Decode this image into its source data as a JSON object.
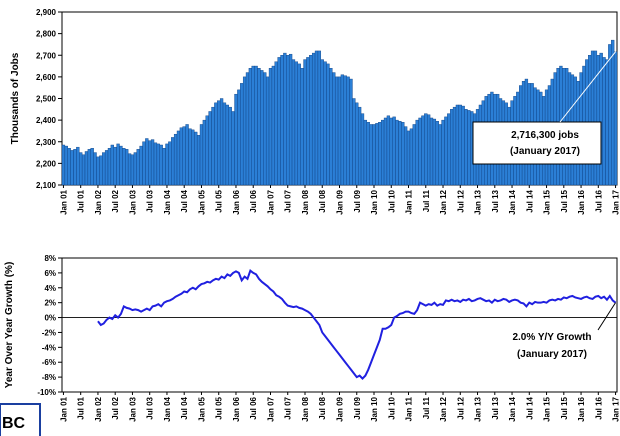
{
  "chart_data": [
    {
      "type": "bar",
      "y_label": "Thousands of Jobs",
      "color": "#2b7fd6",
      "edge_color": "#0d3f80",
      "annotation": [
        "2,716,300 jobs",
        "(January 2017)"
      ],
      "categories": [
        "Jan 01",
        null,
        null,
        null,
        null,
        null,
        "Jul 01",
        null,
        null,
        null,
        null,
        null,
        "Jan 02",
        null,
        null,
        null,
        null,
        null,
        "Jul 02",
        null,
        null,
        null,
        null,
        null,
        "Jan 03",
        null,
        null,
        null,
        null,
        null,
        "Jul 03",
        null,
        null,
        null,
        null,
        null,
        "Jan 04",
        null,
        null,
        null,
        null,
        null,
        "Jul 04",
        null,
        null,
        null,
        null,
        null,
        "Jan 05",
        null,
        null,
        null,
        null,
        null,
        "Jul 05",
        null,
        null,
        null,
        null,
        null,
        "Jan 06",
        null,
        null,
        null,
        null,
        null,
        "Jul 06",
        null,
        null,
        null,
        null,
        null,
        "Jan 07",
        null,
        null,
        null,
        null,
        null,
        "Jul 07",
        null,
        null,
        null,
        null,
        null,
        "Jan 08",
        null,
        null,
        null,
        null,
        null,
        "Jul 08",
        null,
        null,
        null,
        null,
        null,
        "Jan 09",
        null,
        null,
        null,
        null,
        null,
        "Jul 09",
        null,
        null,
        null,
        null,
        null,
        "Jan 10",
        null,
        null,
        null,
        null,
        null,
        "Jul 10",
        null,
        null,
        null,
        null,
        null,
        "Jan 11",
        null,
        null,
        null,
        null,
        null,
        "Jul 11",
        null,
        null,
        null,
        null,
        null,
        "Jan 12",
        null,
        null,
        null,
        null,
        null,
        "Jul 12",
        null,
        null,
        null,
        null,
        null,
        "Jan 13",
        null,
        null,
        null,
        null,
        null,
        "Jul 13",
        null,
        null,
        null,
        null,
        null,
        "Jan 14",
        null,
        null,
        null,
        null,
        null,
        "Jul 14",
        null,
        null,
        null,
        null,
        null,
        "Jan 15",
        null,
        null,
        null,
        null,
        null,
        "Jul 15",
        null,
        null,
        null,
        null,
        null,
        "Jan 16",
        null,
        null,
        null,
        null,
        null,
        "Jul 16",
        null,
        null,
        null,
        null,
        null,
        "Jan 17"
      ],
      "values": [
        2285,
        2280,
        2270,
        2260,
        2265,
        2275,
        2250,
        2240,
        2255,
        2265,
        2270,
        2250,
        2230,
        2235,
        2250,
        2260,
        2270,
        2285,
        2275,
        2290,
        2280,
        2270,
        2265,
        2245,
        2240,
        2250,
        2265,
        2280,
        2300,
        2315,
        2305,
        2310,
        2295,
        2290,
        2285,
        2270,
        2290,
        2300,
        2320,
        2335,
        2350,
        2365,
        2370,
        2380,
        2360,
        2355,
        2345,
        2330,
        2380,
        2400,
        2420,
        2440,
        2460,
        2480,
        2490,
        2500,
        2480,
        2470,
        2460,
        2440,
        2520,
        2540,
        2570,
        2600,
        2620,
        2640,
        2650,
        2650,
        2640,
        2630,
        2620,
        2600,
        2640,
        2650,
        2670,
        2690,
        2700,
        2710,
        2700,
        2705,
        2680,
        2670,
        2660,
        2640,
        2680,
        2690,
        2700,
        2710,
        2720,
        2720,
        2680,
        2670,
        2660,
        2640,
        2620,
        2600,
        2600,
        2610,
        2605,
        2600,
        2590,
        2500,
        2480,
        2460,
        2430,
        2400,
        2390,
        2380,
        2380,
        2385,
        2390,
        2400,
        2410,
        2420,
        2410,
        2415,
        2400,
        2395,
        2390,
        2370,
        2350,
        2360,
        2380,
        2400,
        2410,
        2420,
        2430,
        2425,
        2410,
        2405,
        2395,
        2380,
        2400,
        2415,
        2430,
        2450,
        2460,
        2470,
        2470,
        2465,
        2450,
        2445,
        2440,
        2430,
        2450,
        2470,
        2490,
        2510,
        2520,
        2530,
        2520,
        2520,
        2500,
        2490,
        2480,
        2460,
        2490,
        2510,
        2530,
        2560,
        2580,
        2590,
        2570,
        2570,
        2550,
        2540,
        2530,
        2510,
        2540,
        2560,
        2590,
        2620,
        2640,
        2650,
        2640,
        2640,
        2620,
        2610,
        2600,
        2580,
        2620,
        2650,
        2680,
        2700,
        2720,
        2720,
        2700,
        2710,
        2690,
        2680,
        2750,
        2770,
        2716.3
      ],
      "ylim": [
        2100,
        2900
      ],
      "yticks": [
        {
          "value": 2100,
          "label": "2,100"
        },
        {
          "value": 2200,
          "label": "2,200"
        },
        {
          "value": 2300,
          "label": "2,300"
        },
        {
          "value": 2400,
          "label": "2,400"
        },
        {
          "value": 2500,
          "label": "2,500"
        },
        {
          "value": 2600,
          "label": "2,600"
        },
        {
          "value": 2700,
          "label": "2,700"
        },
        {
          "value": 2800,
          "label": "2,800"
        },
        {
          "value": 2900,
          "label": "2,900"
        }
      ]
    },
    {
      "type": "line",
      "y_label": "Year Over Year Growth (%)",
      "color": "#2020e0",
      "annotation": [
        "2.0% Y/Y Growth",
        "(January 2017)"
      ],
      "categories": [
        "Jan 01",
        null,
        null,
        null,
        null,
        null,
        "Jul 01",
        null,
        null,
        null,
        null,
        null,
        "Jan 02",
        null,
        null,
        null,
        null,
        null,
        "Jul 02",
        null,
        null,
        null,
        null,
        null,
        "Jan 03",
        null,
        null,
        null,
        null,
        null,
        "Jul 03",
        null,
        null,
        null,
        null,
        null,
        "Jan 04",
        null,
        null,
        null,
        null,
        null,
        "Jul 04",
        null,
        null,
        null,
        null,
        null,
        "Jan 05",
        null,
        null,
        null,
        null,
        null,
        "Jul 05",
        null,
        null,
        null,
        null,
        null,
        "Jan 06",
        null,
        null,
        null,
        null,
        null,
        "Jul 06",
        null,
        null,
        null,
        null,
        null,
        "Jan 07",
        null,
        null,
        null,
        null,
        null,
        "Jul 07",
        null,
        null,
        null,
        null,
        null,
        "Jan 08",
        null,
        null,
        null,
        null,
        null,
        "Jul 08",
        null,
        null,
        null,
        null,
        null,
        "Jan 09",
        null,
        null,
        null,
        null,
        null,
        "Jul 09",
        null,
        null,
        null,
        null,
        null,
        "Jan 10",
        null,
        null,
        null,
        null,
        null,
        "Jul 10",
        null,
        null,
        null,
        null,
        null,
        "Jan 11",
        null,
        null,
        null,
        null,
        null,
        "Jul 11",
        null,
        null,
        null,
        null,
        null,
        "Jan 12",
        null,
        null,
        null,
        null,
        null,
        "Jul 12",
        null,
        null,
        null,
        null,
        null,
        "Jan 13",
        null,
        null,
        null,
        null,
        null,
        "Jul 13",
        null,
        null,
        null,
        null,
        null,
        "Jan 14",
        null,
        null,
        null,
        null,
        null,
        "Jul 14",
        null,
        null,
        null,
        null,
        null,
        "Jan 15",
        null,
        null,
        null,
        null,
        null,
        "Jul 15",
        null,
        null,
        null,
        null,
        null,
        "Jan 16",
        null,
        null,
        null,
        null,
        null,
        "Jul 16",
        null,
        null,
        null,
        null,
        null,
        "Jan 17"
      ],
      "values": [
        null,
        null,
        null,
        null,
        null,
        null,
        null,
        null,
        null,
        null,
        null,
        null,
        -0.5,
        -1.0,
        -0.8,
        -0.3,
        0.0,
        -0.2,
        0.3,
        0.0,
        0.5,
        1.5,
        1.3,
        1.2,
        1.0,
        1.1,
        1.0,
        0.8,
        1.0,
        1.2,
        1.0,
        1.5,
        1.6,
        1.8,
        1.5,
        2.0,
        2.2,
        2.3,
        2.5,
        2.8,
        3.0,
        3.2,
        3.5,
        3.4,
        3.8,
        4.0,
        3.8,
        4.2,
        4.5,
        4.6,
        4.8,
        4.7,
        5.0,
        5.2,
        5.1,
        5.5,
        5.3,
        5.8,
        5.6,
        6.0,
        6.2,
        6.0,
        5.0,
        5.5,
        5.2,
        6.3,
        6.0,
        5.8,
        5.2,
        4.8,
        4.5,
        4.2,
        3.8,
        3.5,
        3.0,
        2.8,
        2.5,
        2.0,
        1.6,
        1.5,
        1.4,
        1.5,
        1.3,
        1.2,
        1.0,
        0.8,
        0.5,
        0.0,
        -0.5,
        -1.0,
        -2.0,
        -2.5,
        -3.0,
        -3.5,
        -4.0,
        -4.5,
        -5.0,
        -5.5,
        -6.0,
        -6.5,
        -7.0,
        -7.5,
        -8.0,
        -7.8,
        -8.2,
        -7.8,
        -7.0,
        -6.0,
        -5.0,
        -4.0,
        -3.0,
        -1.5,
        -1.5,
        -1.3,
        -1.0,
        0.0,
        0.2,
        0.5,
        0.6,
        0.8,
        0.8,
        0.6,
        0.5,
        1.0,
        2.0,
        1.8,
        1.6,
        1.8,
        1.7,
        2.0,
        1.6,
        1.8,
        1.7,
        2.3,
        2.2,
        2.4,
        2.2,
        2.3,
        2.1,
        2.4,
        2.3,
        2.5,
        2.2,
        2.3,
        2.5,
        2.6,
        2.4,
        2.2,
        2.3,
        2.0,
        2.4,
        2.2,
        2.3,
        2.5,
        2.4,
        2.1,
        2.3,
        2.4,
        2.3,
        2.0,
        1.9,
        1.5,
        2.0,
        1.8,
        2.1,
        2.0,
        2.0,
        2.1,
        2.0,
        2.3,
        2.4,
        2.3,
        2.5,
        2.4,
        2.7,
        2.6,
        2.8,
        2.9,
        2.7,
        2.6,
        2.5,
        2.7,
        2.8,
        2.6,
        2.5,
        2.8,
        2.9,
        2.6,
        2.8,
        2.4,
        2.9,
        2.3,
        2.0
      ],
      "ylim": [
        -10,
        8
      ],
      "yticks": [
        {
          "value": -10,
          "label": "-10%"
        },
        {
          "value": -8,
          "label": "-8%"
        },
        {
          "value": -6,
          "label": "-6%"
        },
        {
          "value": -4,
          "label": "-4%"
        },
        {
          "value": -2,
          "label": "-2%"
        },
        {
          "value": 0,
          "label": "0%"
        },
        {
          "value": 2,
          "label": "2%"
        },
        {
          "value": 4,
          "label": "4%"
        },
        {
          "value": 6,
          "label": "6%"
        },
        {
          "value": 8,
          "label": "8%"
        }
      ]
    }
  ],
  "logo_text": "BC"
}
